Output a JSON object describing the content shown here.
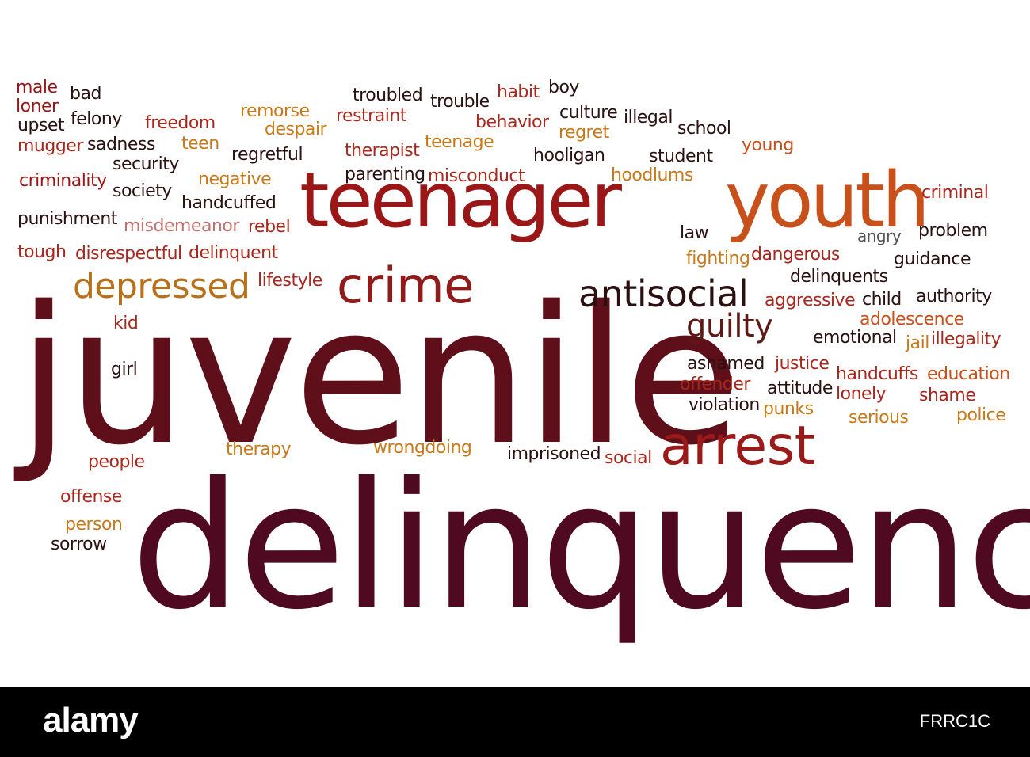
{
  "cloud": {
    "words": [
      {
        "text": "juvenile",
        "color": "#5e0f1a"
      },
      {
        "text": "delinquency",
        "color": "#4f0a22"
      },
      {
        "text": "teenager",
        "color": "#9b1616"
      },
      {
        "text": "youth",
        "color": "#c8501a"
      },
      {
        "text": "crime",
        "color": "#8f1b1b"
      },
      {
        "text": "depressed",
        "color": "#b8701b"
      },
      {
        "text": "antisocial",
        "color": "#2a1010"
      },
      {
        "text": "arrest",
        "color": "#9a1a1a"
      },
      {
        "text": "guilty",
        "color": "#5e1a16"
      },
      {
        "text": "male",
        "color": "#9b1616"
      },
      {
        "text": "bad",
        "color": "#2a1010"
      },
      {
        "text": "loner",
        "color": "#9b1616"
      },
      {
        "text": "upset",
        "color": "#2a1010"
      },
      {
        "text": "felony",
        "color": "#2a1010"
      },
      {
        "text": "freedom",
        "color": "#a8281e"
      },
      {
        "text": "remorse",
        "color": "#c87a1a"
      },
      {
        "text": "despair",
        "color": "#c87a1a"
      },
      {
        "text": "troubled",
        "color": "#2a1010"
      },
      {
        "text": "restraint",
        "color": "#a8281e"
      },
      {
        "text": "trouble",
        "color": "#2a1010"
      },
      {
        "text": "habit",
        "color": "#a8281e"
      },
      {
        "text": "boy",
        "color": "#2a1010"
      },
      {
        "text": "behavior",
        "color": "#a8281e"
      },
      {
        "text": "culture",
        "color": "#2a1010"
      },
      {
        "text": "regret",
        "color": "#c87a1a"
      },
      {
        "text": "illegal",
        "color": "#2a1010"
      },
      {
        "text": "school",
        "color": "#2a1010"
      },
      {
        "text": "mugger",
        "color": "#a8281e"
      },
      {
        "text": "sadness",
        "color": "#2a1010"
      },
      {
        "text": "teen",
        "color": "#c87a1a"
      },
      {
        "text": "regretful",
        "color": "#2a1010"
      },
      {
        "text": "therapist",
        "color": "#a8281e"
      },
      {
        "text": "teenage",
        "color": "#c87a1a"
      },
      {
        "text": "hooligan",
        "color": "#2a1010"
      },
      {
        "text": "student",
        "color": "#2a1010"
      },
      {
        "text": "young",
        "color": "#c8501a"
      },
      {
        "text": "security",
        "color": "#2a1010"
      },
      {
        "text": "criminality",
        "color": "#9b1616"
      },
      {
        "text": "negative",
        "color": "#c87a1a"
      },
      {
        "text": "parenting",
        "color": "#2a1010"
      },
      {
        "text": "misconduct",
        "color": "#a8281e"
      },
      {
        "text": "hoodlums",
        "color": "#c87a1a"
      },
      {
        "text": "society",
        "color": "#2a1010"
      },
      {
        "text": "handcuffed",
        "color": "#2a1010"
      },
      {
        "text": "criminal",
        "color": "#a8281e"
      },
      {
        "text": "punishment",
        "color": "#2a1010"
      },
      {
        "text": "misdemeanor",
        "color": "#c07070"
      },
      {
        "text": "rebel",
        "color": "#a8281e"
      },
      {
        "text": "law",
        "color": "#2a1010"
      },
      {
        "text": "angry",
        "color": "#555555"
      },
      {
        "text": "problem",
        "color": "#2a1010"
      },
      {
        "text": "tough",
        "color": "#a8281e"
      },
      {
        "text": "disrespectful",
        "color": "#a8281e"
      },
      {
        "text": "delinquent",
        "color": "#a8281e"
      },
      {
        "text": "fighting",
        "color": "#c87a1a"
      },
      {
        "text": "dangerous",
        "color": "#a8281e"
      },
      {
        "text": "guidance",
        "color": "#2a1010"
      },
      {
        "text": "lifestyle",
        "color": "#a8281e"
      },
      {
        "text": "delinquents",
        "color": "#2a1010"
      },
      {
        "text": "aggressive",
        "color": "#a8281e"
      },
      {
        "text": "child",
        "color": "#2a1010"
      },
      {
        "text": "authority",
        "color": "#2a1010"
      },
      {
        "text": "kid",
        "color": "#a8281e"
      },
      {
        "text": "adolescence",
        "color": "#c8501a"
      },
      {
        "text": "emotional",
        "color": "#2a1010"
      },
      {
        "text": "jail",
        "color": "#c87a1a"
      },
      {
        "text": "illegality",
        "color": "#a8281e"
      },
      {
        "text": "girl",
        "color": "#2a1010"
      },
      {
        "text": "ashamed",
        "color": "#2a1010"
      },
      {
        "text": "justice",
        "color": "#a8281e"
      },
      {
        "text": "handcuffs",
        "color": "#a8281e"
      },
      {
        "text": "education",
        "color": "#c8501a"
      },
      {
        "text": "offender",
        "color": "#a8281e"
      },
      {
        "text": "attitude",
        "color": "#2a1010"
      },
      {
        "text": "lonely",
        "color": "#a8281e"
      },
      {
        "text": "shame",
        "color": "#a8281e"
      },
      {
        "text": "violation",
        "color": "#2a1010"
      },
      {
        "text": "punks",
        "color": "#c87a1a"
      },
      {
        "text": "serious",
        "color": "#c87a1a"
      },
      {
        "text": "police",
        "color": "#c87a1a"
      },
      {
        "text": "therapy",
        "color": "#c87a1a"
      },
      {
        "text": "wrongdoing",
        "color": "#c87a1a"
      },
      {
        "text": "imprisoned",
        "color": "#2a1010"
      },
      {
        "text": "social",
        "color": "#a8281e"
      },
      {
        "text": "people",
        "color": "#a8281e"
      },
      {
        "text": "offense",
        "color": "#a8281e"
      },
      {
        "text": "person",
        "color": "#c87a1a"
      },
      {
        "text": "sorrow",
        "color": "#2a1010"
      }
    ]
  },
  "footer": {
    "logo": "alamy",
    "image_code": "FRRC1C"
  }
}
